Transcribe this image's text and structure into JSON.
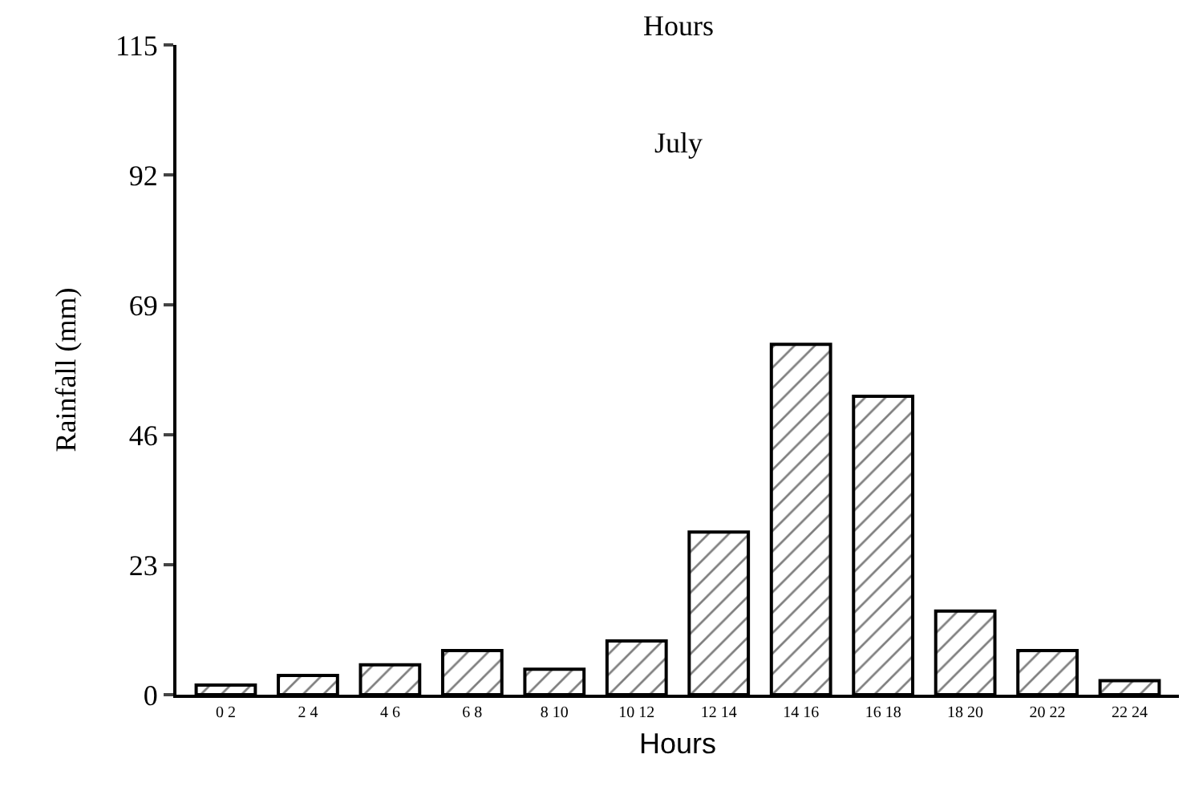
{
  "chart_data": {
    "type": "bar",
    "xlabel": "Hours",
    "ylabel": "Rainfall (mm)",
    "annotations": [
      "Hours",
      "July"
    ],
    "categories": [
      "0 2",
      "2 4",
      "4 6",
      "6 8",
      "8 10",
      "10 12",
      "12 14",
      "14 16",
      "16 18",
      "18 20",
      "20 22",
      "22 24"
    ],
    "values": [
      1.7,
      3.4,
      5.3,
      7.8,
      4.5,
      9.5,
      28.8,
      62,
      52.8,
      14.8,
      7.8,
      2.5
    ],
    "color": "#000000",
    "ylim": [
      0,
      115
    ],
    "yticks": [
      0,
      23,
      46,
      69,
      92,
      115
    ]
  }
}
